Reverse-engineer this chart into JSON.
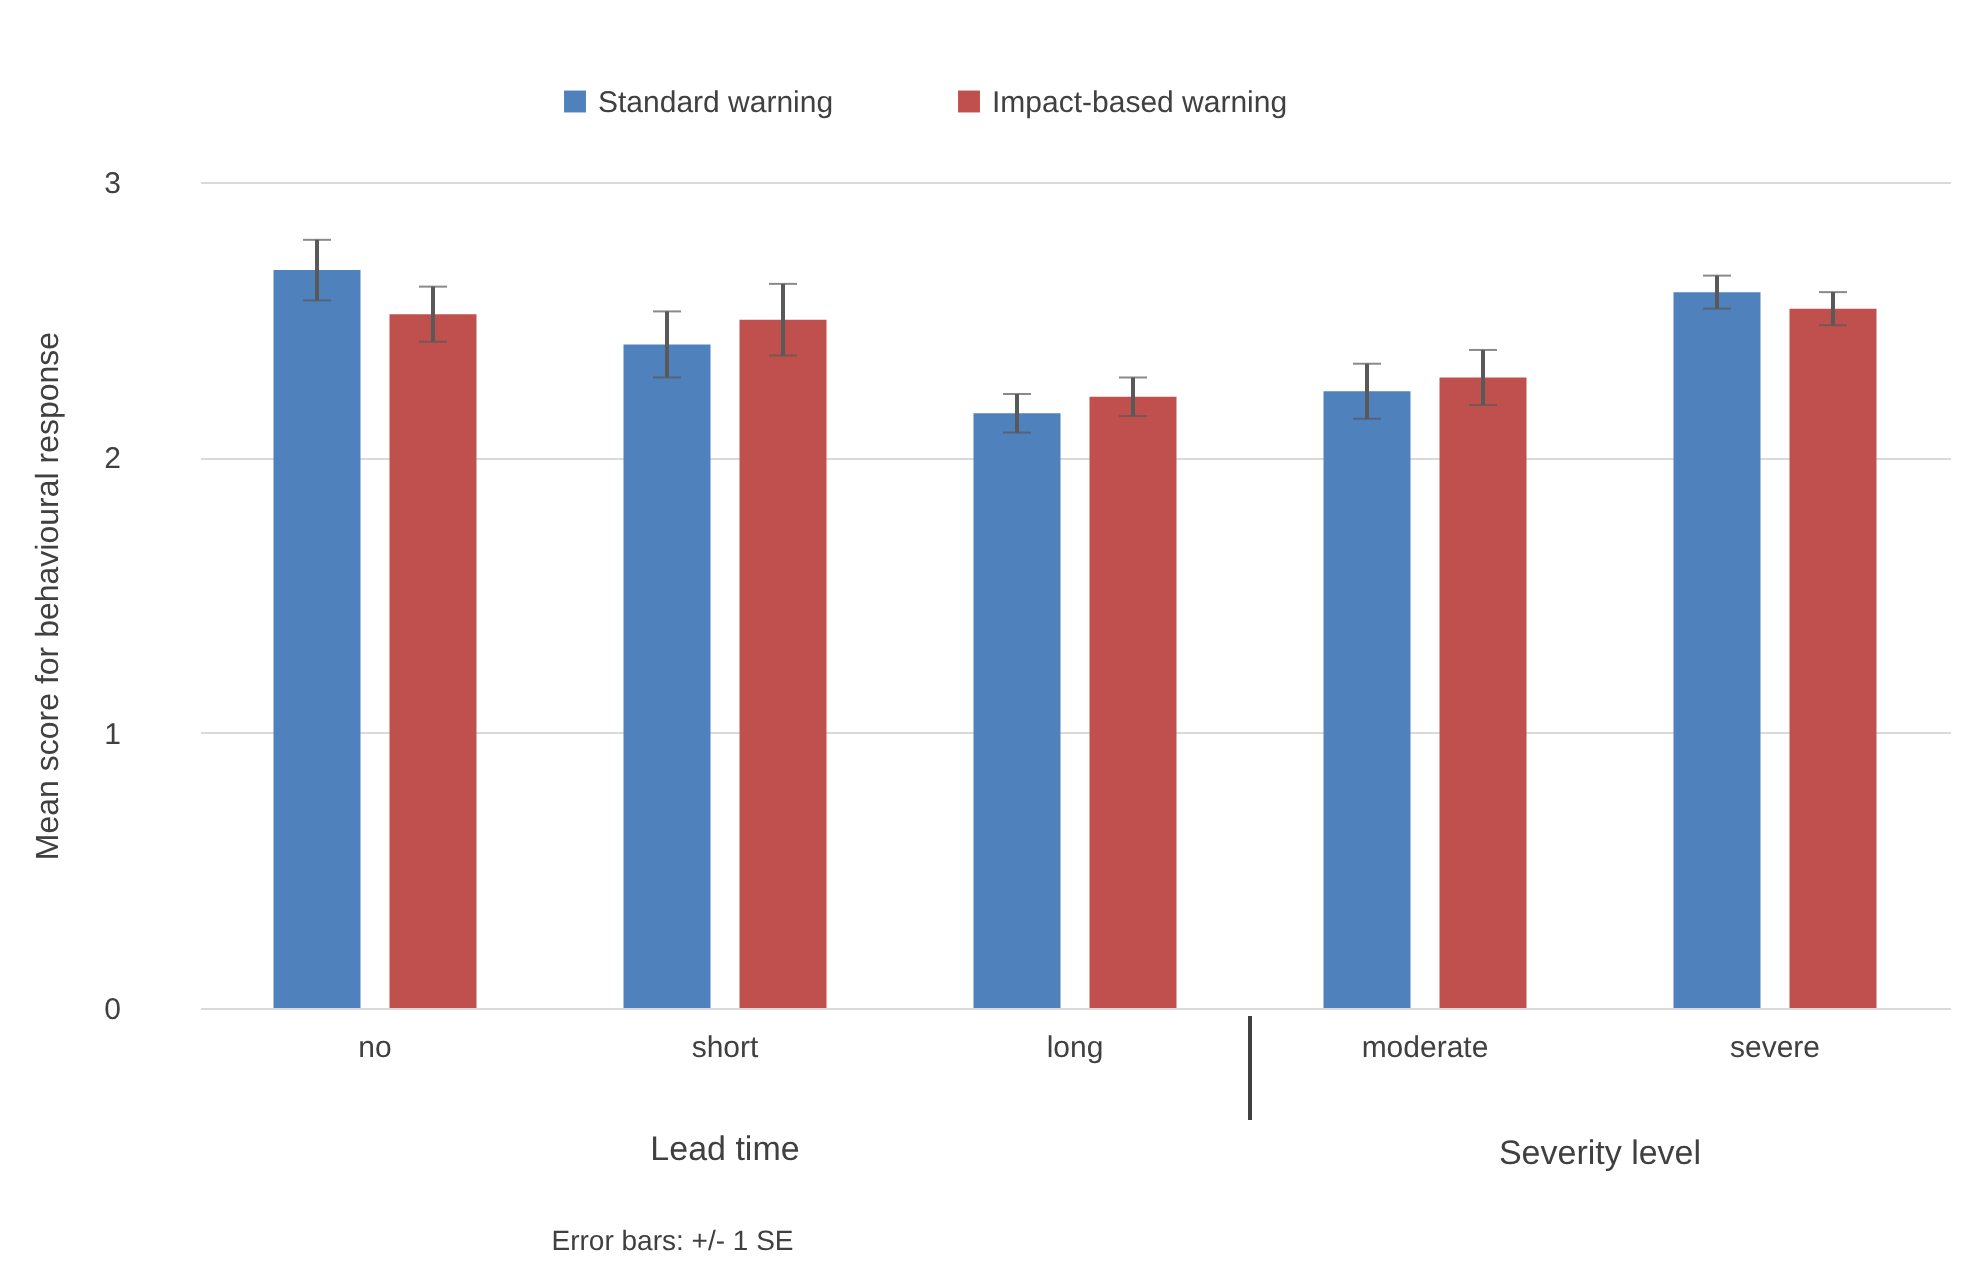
{
  "chart_data": {
    "type": "bar",
    "categories": [
      "no",
      "short",
      "long",
      "moderate",
      "severe"
    ],
    "series": [
      {
        "name": "Standard warning",
        "color": "#4f81bd",
        "values": [
          2.68,
          2.41,
          2.16,
          2.24,
          2.6
        ],
        "errors": [
          0.11,
          0.12,
          0.07,
          0.1,
          0.06
        ]
      },
      {
        "name": "Impact-based warning",
        "color": "#c0504d",
        "values": [
          2.52,
          2.5,
          2.22,
          2.29,
          2.54
        ],
        "errors": [
          0.1,
          0.13,
          0.07,
          0.1,
          0.06
        ]
      }
    ],
    "ylabel": "Mean score for behavioural response",
    "ylim": [
      0,
      3
    ],
    "yticks": [
      0,
      1,
      2,
      3
    ],
    "grid": "y",
    "legend": "top",
    "annotations": [
      "Lead time",
      "Severity level",
      "Error bars: +/- 1 SE"
    ]
  }
}
